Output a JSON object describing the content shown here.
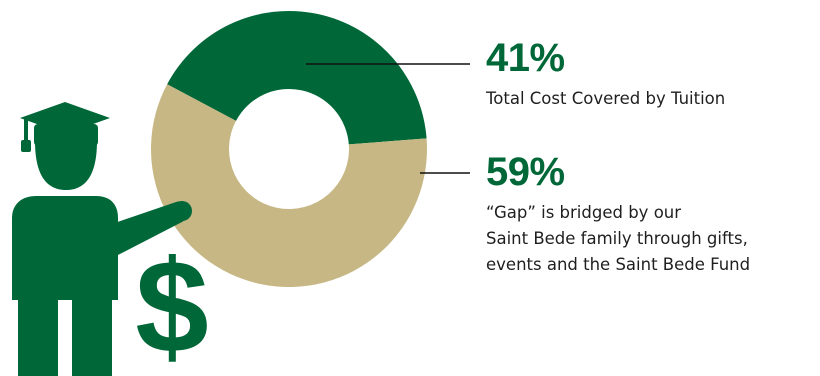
{
  "chart_data": {
    "type": "pie",
    "variant": "donut",
    "slices": [
      {
        "value": 41,
        "label": "41%",
        "description": "Total Cost Covered by Tuition",
        "color": "#006838"
      },
      {
        "value": 59,
        "label": "59%",
        "description_lines": [
          "“Gap” is bridged by our",
          "Saint Bede family through gifts,",
          "events and the Saint Bede Fund"
        ],
        "color": "#c7b784"
      }
    ]
  },
  "icons": {
    "figure": "graduate-pointing-icon",
    "currency": "dollar-sign-icon"
  },
  "colors": {
    "brand_green": "#006838",
    "gold": "#c7b784"
  }
}
